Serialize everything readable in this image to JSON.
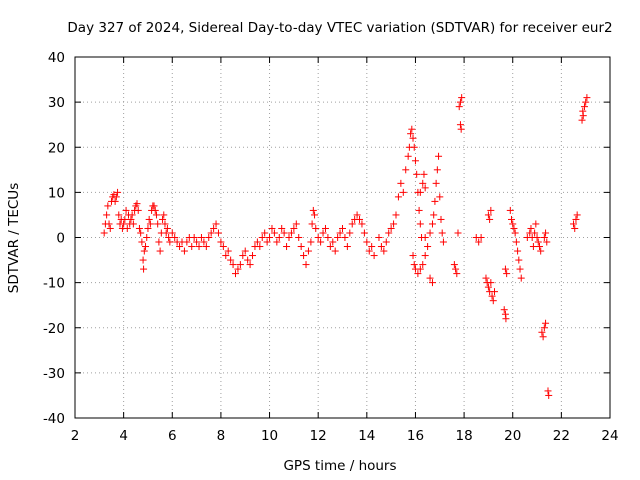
{
  "chart_data": {
    "type": "scatter",
    "title": "Day 327 of 2024, Sidereal Day-to-day VTEC variation (SDTVAR) for receiver eur2",
    "xlabel": "GPS time / hours",
    "ylabel": "SDTVAR / TECUs",
    "xlim": [
      2,
      24
    ],
    "ylim": [
      -40,
      40
    ],
    "xticks": [
      2,
      4,
      6,
      8,
      10,
      12,
      14,
      16,
      18,
      20,
      22,
      24
    ],
    "yticks": [
      -40,
      -30,
      -20,
      -10,
      0,
      10,
      20,
      30,
      40
    ],
    "grid": true,
    "marker": "plus",
    "series": [
      {
        "name": "eur2",
        "color": "#ff0000",
        "points": [
          [
            3.2,
            1
          ],
          [
            3.25,
            3
          ],
          [
            3.3,
            5
          ],
          [
            3.35,
            7
          ],
          [
            3.4,
            3
          ],
          [
            3.45,
            2
          ],
          [
            3.5,
            8
          ],
          [
            3.55,
            9
          ],
          [
            3.6,
            9.5
          ],
          [
            3.65,
            8
          ],
          [
            3.7,
            9
          ],
          [
            3.75,
            10
          ],
          [
            3.8,
            5
          ],
          [
            3.85,
            3
          ],
          [
            3.9,
            4
          ],
          [
            3.95,
            2
          ],
          [
            4.0,
            3
          ],
          [
            4.05,
            4
          ],
          [
            4.1,
            6
          ],
          [
            4.15,
            2
          ],
          [
            4.2,
            5
          ],
          [
            4.25,
            3
          ],
          [
            4.3,
            4
          ],
          [
            4.35,
            5
          ],
          [
            4.4,
            3
          ],
          [
            4.45,
            6
          ],
          [
            4.5,
            7
          ],
          [
            4.55,
            7.5
          ],
          [
            4.6,
            6
          ],
          [
            4.65,
            2
          ],
          [
            4.7,
            1
          ],
          [
            4.75,
            -1
          ],
          [
            4.8,
            -5
          ],
          [
            4.82,
            -7
          ],
          [
            4.85,
            -3
          ],
          [
            4.9,
            -2
          ],
          [
            4.95,
            0
          ],
          [
            5.0,
            2
          ],
          [
            5.05,
            4
          ],
          [
            5.1,
            3
          ],
          [
            5.15,
            6
          ],
          [
            5.2,
            7
          ],
          [
            5.25,
            7
          ],
          [
            5.3,
            6
          ],
          [
            5.35,
            5
          ],
          [
            5.4,
            3
          ],
          [
            5.45,
            -1
          ],
          [
            5.5,
            -3
          ],
          [
            5.55,
            1
          ],
          [
            5.6,
            4
          ],
          [
            5.65,
            5
          ],
          [
            5.7,
            3
          ],
          [
            5.75,
            1
          ],
          [
            5.8,
            2
          ],
          [
            5.85,
            0
          ],
          [
            5.9,
            -1
          ],
          [
            6.0,
            1
          ],
          [
            6.1,
            0
          ],
          [
            6.2,
            -1
          ],
          [
            6.3,
            -2
          ],
          [
            6.4,
            -1
          ],
          [
            6.5,
            -3
          ],
          [
            6.6,
            -1
          ],
          [
            6.7,
            0
          ],
          [
            6.8,
            -2
          ],
          [
            6.9,
            0
          ],
          [
            7.0,
            -1
          ],
          [
            7.1,
            -2
          ],
          [
            7.2,
            0
          ],
          [
            7.3,
            -1
          ],
          [
            7.4,
            -2
          ],
          [
            7.5,
            0
          ],
          [
            7.6,
            1
          ],
          [
            7.7,
            2
          ],
          [
            7.8,
            3
          ],
          [
            7.9,
            1
          ],
          [
            8.0,
            -1
          ],
          [
            8.1,
            -2
          ],
          [
            8.2,
            -4
          ],
          [
            8.3,
            -3
          ],
          [
            8.4,
            -5
          ],
          [
            8.5,
            -6
          ],
          [
            8.6,
            -8
          ],
          [
            8.7,
            -7
          ],
          [
            8.8,
            -6
          ],
          [
            8.9,
            -4
          ],
          [
            9.0,
            -3
          ],
          [
            9.1,
            -5
          ],
          [
            9.2,
            -6
          ],
          [
            9.3,
            -4
          ],
          [
            9.4,
            -2
          ],
          [
            9.5,
            -1
          ],
          [
            9.6,
            -2
          ],
          [
            9.7,
            0
          ],
          [
            9.8,
            1
          ],
          [
            9.9,
            -1
          ],
          [
            10.0,
            0
          ],
          [
            10.1,
            2
          ],
          [
            10.2,
            1
          ],
          [
            10.3,
            -1
          ],
          [
            10.4,
            0
          ],
          [
            10.5,
            2
          ],
          [
            10.6,
            1
          ],
          [
            10.7,
            -2
          ],
          [
            10.8,
            0
          ],
          [
            10.9,
            1
          ],
          [
            11.0,
            2
          ],
          [
            11.1,
            3
          ],
          [
            11.2,
            0
          ],
          [
            11.3,
            -2
          ],
          [
            11.4,
            -4
          ],
          [
            11.5,
            -6
          ],
          [
            11.6,
            -3
          ],
          [
            11.7,
            -1
          ],
          [
            11.75,
            3
          ],
          [
            11.8,
            6
          ],
          [
            11.85,
            5
          ],
          [
            11.9,
            2
          ],
          [
            12.0,
            0
          ],
          [
            12.1,
            -1
          ],
          [
            12.2,
            1
          ],
          [
            12.3,
            2
          ],
          [
            12.4,
            0
          ],
          [
            12.5,
            -2
          ],
          [
            12.6,
            -1
          ],
          [
            12.7,
            -3
          ],
          [
            12.8,
            0
          ],
          [
            12.9,
            1
          ],
          [
            13.0,
            2
          ],
          [
            13.1,
            0
          ],
          [
            13.2,
            -2
          ],
          [
            13.3,
            1
          ],
          [
            13.4,
            3
          ],
          [
            13.5,
            4
          ],
          [
            13.6,
            5
          ],
          [
            13.7,
            4
          ],
          [
            13.8,
            3
          ],
          [
            13.9,
            1
          ],
          [
            14.0,
            -1
          ],
          [
            14.1,
            -3
          ],
          [
            14.2,
            -2
          ],
          [
            14.3,
            -4
          ],
          [
            14.5,
            0
          ],
          [
            14.6,
            -2
          ],
          [
            14.7,
            -3
          ],
          [
            14.8,
            -1
          ],
          [
            14.9,
            1
          ],
          [
            15.0,
            2
          ],
          [
            15.1,
            3
          ],
          [
            15.2,
            5
          ],
          [
            15.3,
            9
          ],
          [
            15.4,
            12
          ],
          [
            15.5,
            10
          ],
          [
            15.6,
            15
          ],
          [
            15.7,
            18
          ],
          [
            15.75,
            20
          ],
          [
            15.8,
            23
          ],
          [
            15.85,
            24
          ],
          [
            15.9,
            22
          ],
          [
            15.95,
            20
          ],
          [
            16.0,
            17
          ],
          [
            16.05,
            14
          ],
          [
            16.1,
            10
          ],
          [
            16.15,
            6
          ],
          [
            16.2,
            3
          ],
          [
            16.25,
            0
          ],
          [
            15.9,
            -4
          ],
          [
            15.95,
            -6
          ],
          [
            16.0,
            -7
          ],
          [
            16.1,
            -8
          ],
          [
            16.2,
            -7
          ],
          [
            16.3,
            -6
          ],
          [
            16.4,
            -4
          ],
          [
            16.5,
            -2
          ],
          [
            16.6,
            1
          ],
          [
            16.7,
            3
          ],
          [
            16.75,
            5
          ],
          [
            16.8,
            8
          ],
          [
            16.85,
            12
          ],
          [
            16.9,
            15
          ],
          [
            16.95,
            18
          ],
          [
            17.0,
            9
          ],
          [
            17.05,
            4
          ],
          [
            17.1,
            1
          ],
          [
            17.15,
            -1
          ],
          [
            16.6,
            -9
          ],
          [
            16.7,
            -10
          ],
          [
            16.4,
            0
          ],
          [
            16.2,
            10
          ],
          [
            16.3,
            12
          ],
          [
            16.35,
            14
          ],
          [
            16.4,
            11
          ],
          [
            17.6,
            -6
          ],
          [
            17.65,
            -7
          ],
          [
            17.7,
            -8
          ],
          [
            17.75,
            1
          ],
          [
            17.8,
            29
          ],
          [
            17.85,
            30
          ],
          [
            17.9,
            31
          ],
          [
            17.85,
            25
          ],
          [
            17.88,
            24
          ],
          [
            18.5,
            0
          ],
          [
            18.6,
            -1
          ],
          [
            18.7,
            0
          ],
          [
            18.9,
            -9
          ],
          [
            18.95,
            -10
          ],
          [
            19.0,
            -11
          ],
          [
            19.05,
            -12
          ],
          [
            19.1,
            -10
          ],
          [
            19.15,
            -13
          ],
          [
            19.2,
            -14
          ],
          [
            19.25,
            -12
          ],
          [
            19.0,
            5
          ],
          [
            19.05,
            4
          ],
          [
            19.1,
            6
          ],
          [
            19.7,
            -7
          ],
          [
            19.75,
            -8
          ],
          [
            19.65,
            -16
          ],
          [
            19.7,
            -17
          ],
          [
            19.72,
            -18
          ],
          [
            19.9,
            6
          ],
          [
            19.95,
            4
          ],
          [
            20.0,
            3
          ],
          [
            20.05,
            2
          ],
          [
            20.1,
            1
          ],
          [
            20.15,
            -1
          ],
          [
            20.2,
            -3
          ],
          [
            20.25,
            -5
          ],
          [
            20.3,
            -7
          ],
          [
            20.35,
            -9
          ],
          [
            20.6,
            0
          ],
          [
            20.7,
            1
          ],
          [
            20.75,
            2
          ],
          [
            20.8,
            0
          ],
          [
            20.85,
            -2
          ],
          [
            20.9,
            1
          ],
          [
            20.95,
            3
          ],
          [
            21.0,
            0
          ],
          [
            21.05,
            -1
          ],
          [
            21.1,
            -2
          ],
          [
            21.15,
            -3
          ],
          [
            21.2,
            -21
          ],
          [
            21.25,
            -22
          ],
          [
            21.3,
            -20
          ],
          [
            21.35,
            -19
          ],
          [
            21.3,
            0
          ],
          [
            21.35,
            1
          ],
          [
            21.4,
            -1
          ],
          [
            21.45,
            -34
          ],
          [
            21.48,
            -35
          ],
          [
            22.5,
            3
          ],
          [
            22.55,
            2
          ],
          [
            22.6,
            4
          ],
          [
            22.65,
            5
          ],
          [
            22.85,
            26
          ],
          [
            22.9,
            27
          ],
          [
            22.95,
            29
          ],
          [
            23.0,
            30
          ],
          [
            23.05,
            31
          ],
          [
            22.88,
            28
          ]
        ]
      }
    ]
  }
}
